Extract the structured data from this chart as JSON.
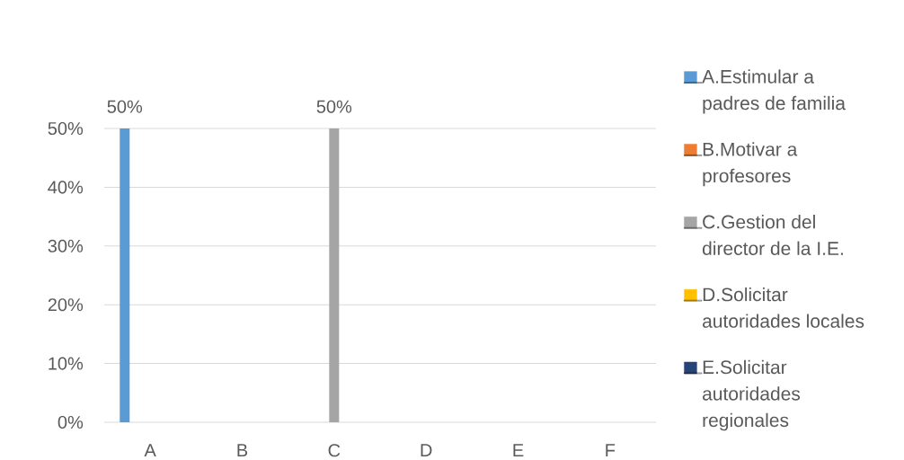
{
  "chart_data": {
    "type": "bar",
    "categories": [
      "A",
      "B",
      "C",
      "D",
      "E",
      "F"
    ],
    "series": [
      {
        "name": "A.Estimular a padres de familia",
        "color": "#5b9bd5",
        "values": [
          50,
          null,
          null,
          null,
          null,
          null
        ],
        "value_labels": [
          "50%",
          null,
          null,
          null,
          null,
          null
        ]
      },
      {
        "name": "B.Motivar a profesores",
        "color": "#ed7d31",
        "values": [
          null,
          null,
          null,
          null,
          null,
          null
        ]
      },
      {
        "name": "C.Gestion del director de la I.E.",
        "color": "#a5a5a5",
        "values": [
          null,
          null,
          50,
          null,
          null,
          null
        ],
        "value_labels": [
          null,
          null,
          "50%",
          null,
          null,
          null
        ]
      },
      {
        "name": "D.Solicitar autoridades locales",
        "color": "#ffc000",
        "values": [
          null,
          null,
          null,
          null,
          null,
          null
        ]
      },
      {
        "name": "E.Solicitar autoridades regionales",
        "color": "#264478",
        "values": [
          null,
          null,
          null,
          null,
          null,
          null
        ]
      }
    ],
    "ylim": [
      0,
      50
    ],
    "yticks": [
      {
        "value": 0,
        "label": "0%"
      },
      {
        "value": 10,
        "label": "10%"
      },
      {
        "value": 20,
        "label": "20%"
      },
      {
        "value": 30,
        "label": "30%"
      },
      {
        "value": 40,
        "label": "40%"
      },
      {
        "value": 50,
        "label": "50%"
      }
    ],
    "grid": "y",
    "legend": "right"
  }
}
